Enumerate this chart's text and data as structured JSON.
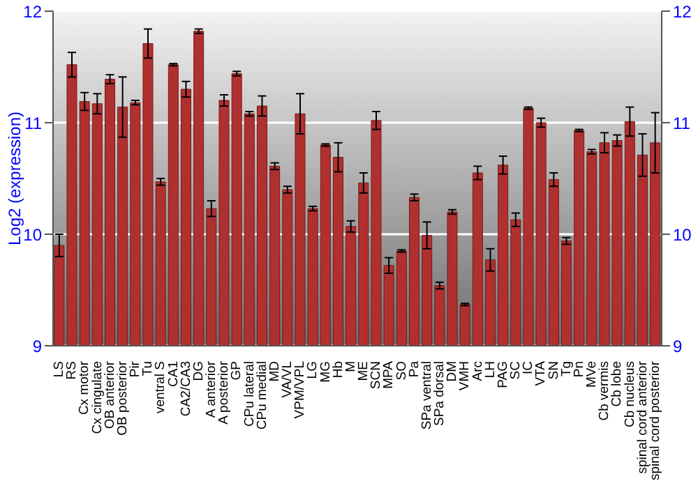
{
  "chart_data": {
    "type": "bar",
    "ylabel": "Log2 (expression)",
    "categories": [
      "LS",
      "RS",
      "Cx motor",
      "Cx cingulate",
      "OB anterior",
      "OB posterior",
      "Pir",
      "Tu",
      "ventral S",
      "CA1",
      "CA2/CA3",
      "DG",
      "A anterior",
      "A posterior",
      "GP",
      "CPu lateral",
      "CPu medial",
      "MD",
      "VA/VL",
      "VPM/VPL",
      "LG",
      "MG",
      "Hb",
      "M",
      "ME",
      "SCN",
      "MPA",
      "SO",
      "Pa",
      "SPa ventral",
      "SPa dorsal",
      "DM",
      "VMH",
      "Arc",
      "LH",
      "PAG",
      "SC",
      "IC",
      "VTA",
      "SN",
      "Tg",
      "Pn",
      "MVe",
      "Cb vermis",
      "Cb lobe",
      "Cb nucleus",
      "spinal cord anterior",
      "spinal cord posterior"
    ],
    "values": [
      9.9,
      11.52,
      11.19,
      11.17,
      11.39,
      11.14,
      11.18,
      11.71,
      10.47,
      11.52,
      11.3,
      11.82,
      10.23,
      11.2,
      11.44,
      11.08,
      11.15,
      10.61,
      10.4,
      11.08,
      10.23,
      10.8,
      10.69,
      10.07,
      10.46,
      11.02,
      9.72,
      9.85,
      10.33,
      9.99,
      9.54,
      10.2,
      9.37,
      10.55,
      9.77,
      10.62,
      10.13,
      11.13,
      11.0,
      10.49,
      9.94,
      10.93,
      10.74,
      10.82,
      10.84,
      11.01,
      10.71,
      10.82
    ],
    "errors": [
      0.1,
      0.11,
      0.08,
      0.09,
      0.04,
      0.27,
      0.02,
      0.13,
      0.03,
      0.01,
      0.07,
      0.02,
      0.07,
      0.05,
      0.02,
      0.02,
      0.09,
      0.03,
      0.03,
      0.18,
      0.02,
      0.01,
      0.13,
      0.05,
      0.09,
      0.08,
      0.07,
      0.01,
      0.03,
      0.12,
      0.03,
      0.02,
      0.01,
      0.06,
      0.1,
      0.08,
      0.06,
      0.01,
      0.04,
      0.06,
      0.03,
      0.01,
      0.02,
      0.09,
      0.05,
      0.13,
      0.19,
      0.27
    ],
    "color": "#b03030",
    "ylim": [
      9,
      12
    ],
    "yticks": [
      9,
      10,
      11,
      12
    ],
    "y2lim": [
      9,
      12
    ],
    "y2ticks": [
      9,
      10,
      11,
      12
    ],
    "grid": "y"
  }
}
